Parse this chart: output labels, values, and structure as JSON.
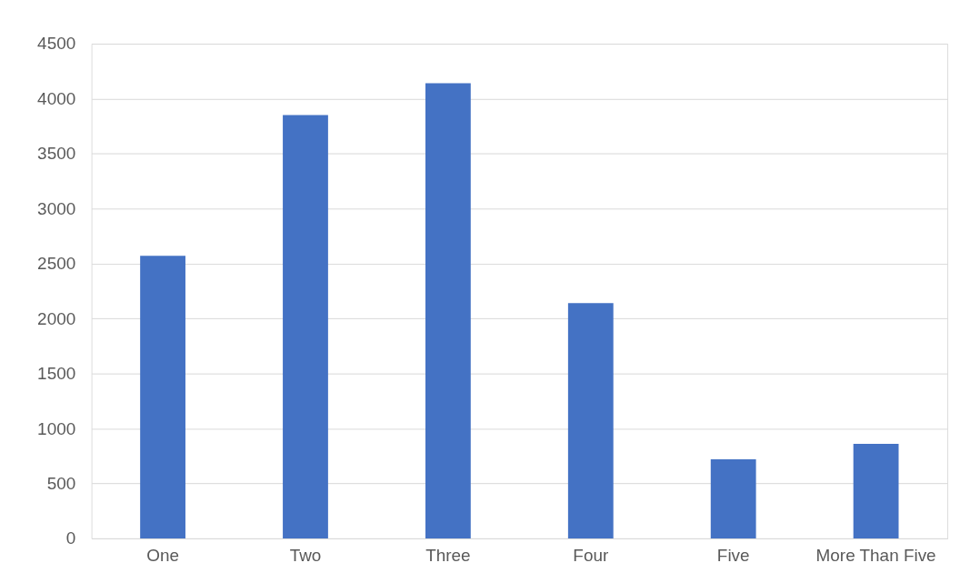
{
  "chart_data": {
    "type": "bar",
    "categories": [
      "One",
      "Two",
      "Three",
      "Four",
      "Five",
      "More Than Five"
    ],
    "values": [
      2570,
      3850,
      4140,
      2140,
      720,
      860
    ],
    "color": "#4472c4",
    "ylim": [
      0,
      4500
    ],
    "yticks": [
      0,
      500,
      1000,
      1500,
      2000,
      2500,
      3000,
      3500,
      4000,
      4500
    ],
    "grid": "y"
  }
}
